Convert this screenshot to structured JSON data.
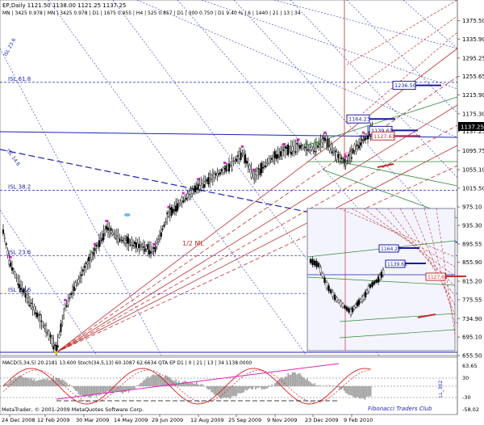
{
  "header": {
    "line1": "EP,Daily  1121.50 1138.00 1121.25 1137.25",
    "line2": "MN | 3425  0.978 | MN | 3425  0.978 | D1 | 1675  0.955 | H4 | 525  0.857 | D1 | 300  0.750 | D1  9.40 % | 6 | 1440 | 21 | 13 | 34"
  },
  "chart_data": {
    "type": "line",
    "symbol": "EP",
    "timeframe": "Daily",
    "ohlc_last": {
      "open": 1121.5,
      "high": 1138.0,
      "low": 1121.25,
      "close": 1137.25
    },
    "current_price_label": "1137.25",
    "ylim": [
      655.5,
      1420
    ],
    "y_ticks": [
      1375.5,
      1335.9,
      1295.25,
      1255.65,
      1215.9,
      1175.3,
      1137.25,
      1095.75,
      1055.1,
      1015.5,
      975.1,
      935.3,
      895.55,
      855.9,
      815.2,
      775.55,
      734.9,
      695.1,
      655.5
    ],
    "x_ticks": [
      "24 Dec 2008",
      "12 Feb 2009",
      "30 Mar 2009",
      "14 May 2009",
      "29 Jun 2009",
      "12 Aug 2009",
      "25 Sep 2009",
      "9 Nov 2009",
      "23 Dec 2009",
      "9 Feb 2010"
    ],
    "price_path": [
      {
        "x": 0,
        "y": 925
      },
      {
        "x": 4,
        "y": 860
      },
      {
        "x": 10,
        "y": 815
      },
      {
        "x": 20,
        "y": 760
      },
      {
        "x": 30,
        "y": 705
      },
      {
        "x": 36,
        "y": 670
      },
      {
        "x": 42,
        "y": 760
      },
      {
        "x": 48,
        "y": 800
      },
      {
        "x": 54,
        "y": 835
      },
      {
        "x": 62,
        "y": 880
      },
      {
        "x": 70,
        "y": 930
      },
      {
        "x": 80,
        "y": 905
      },
      {
        "x": 88,
        "y": 895
      },
      {
        "x": 94,
        "y": 890
      },
      {
        "x": 102,
        "y": 880
      },
      {
        "x": 112,
        "y": 960
      },
      {
        "x": 122,
        "y": 990
      },
      {
        "x": 132,
        "y": 1020
      },
      {
        "x": 140,
        "y": 1035
      },
      {
        "x": 150,
        "y": 1055
      },
      {
        "x": 162,
        "y": 1090
      },
      {
        "x": 170,
        "y": 1040
      },
      {
        "x": 180,
        "y": 1075
      },
      {
        "x": 190,
        "y": 1095
      },
      {
        "x": 200,
        "y": 1105
      },
      {
        "x": 210,
        "y": 1100
      },
      {
        "x": 218,
        "y": 1120
      },
      {
        "x": 226,
        "y": 1085
      },
      {
        "x": 232,
        "y": 1070
      },
      {
        "x": 238,
        "y": 1100
      },
      {
        "x": 244,
        "y": 1120
      },
      {
        "x": 250,
        "y": 1140
      }
    ],
    "fib_levels": [
      {
        "label": "ISL 61.8",
        "price": 1243
      },
      {
        "label": "ISL 38.2",
        "price": 1011
      },
      {
        "label": "ISL 23.6",
        "price": 870
      },
      {
        "label": "ISL 14.6",
        "price": 789
      }
    ],
    "line_labels": [
      "ISL 23.6",
      "ISL 14.6",
      "1/2 ML",
      "1.2 ML"
    ],
    "target_boxes": [
      {
        "label": "1236.50",
        "price": 1236.5
      },
      {
        "label": "1164.23",
        "price": 1164.23
      },
      {
        "label": "1139.61",
        "price": 1139.61
      },
      {
        "label": "1127.61",
        "price": 1127.61
      }
    ],
    "inset": {
      "target_boxes": [
        "1164.23",
        "1139.61",
        "1127.61"
      ]
    },
    "indicator": {
      "legend": "MACD(5,34,5) 20.2181 13.600  Stoch(34,5,13) 60.1087 62.6634  QTA EP D1 | 0 | 21 | 13 | 34 1138.0000",
      "y_ticks": [
        "63.65",
        "30",
        "-30",
        "-58.02"
      ],
      "side_label": "LL_302"
    }
  },
  "footer": {
    "copyright": "MetaTrader, © 2001-2009 MetaQuotes Software Corp.",
    "watermark": "Fibonacci Traders Club"
  },
  "colors": {
    "up": "#2d2d2d",
    "grid_blue": "#1a22b8",
    "fan_red": "#c03030",
    "green_line": "#2e8a3a",
    "magenta": "#e020c0",
    "price_box_bg": "#1a1aa0",
    "inset_bg": "#f4f4ff"
  }
}
